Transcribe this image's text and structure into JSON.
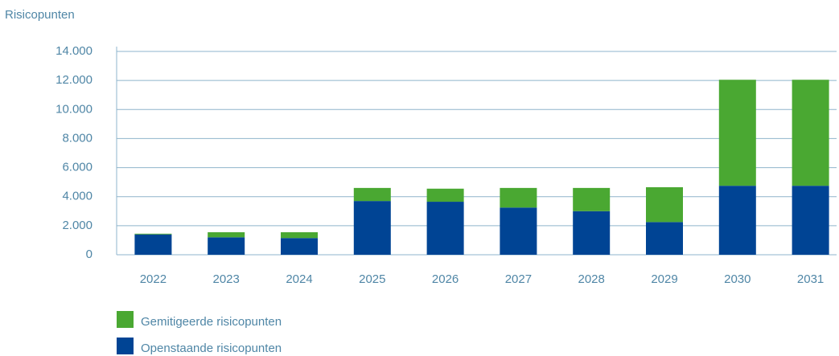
{
  "chart_data": {
    "type": "stacked_bar",
    "y_label": "Risicopunten",
    "categories": [
      "2022",
      "2023",
      "2024",
      "2025",
      "2026",
      "2027",
      "2028",
      "2029",
      "2030",
      "2031"
    ],
    "series": [
      {
        "name": "Openstaande risicopunten",
        "color": "#004494",
        "values": [
          1400,
          1200,
          1150,
          3700,
          3650,
          3250,
          3000,
          2250,
          4750,
          4750
        ]
      },
      {
        "name": "Gemitigeerde risicopunten",
        "color": "#4aa832",
        "values": [
          50,
          350,
          400,
          900,
          900,
          1350,
          1600,
          2400,
          7300,
          7300
        ]
      }
    ],
    "ylim": [
      0,
      14000
    ],
    "yticks": [
      0,
      {
        "value": 2000,
        "label": "2.000"
      },
      {
        "value": 4000,
        "label": "4.000"
      },
      {
        "value": 6000,
        "label": "6.000"
      },
      {
        "value": 8000,
        "label": "8.000"
      },
      {
        "value": 10000,
        "label": "10.000"
      },
      {
        "value": 12000,
        "label": "12.000"
      },
      {
        "value": 14000,
        "label": "14.000"
      }
    ],
    "grid": true
  }
}
